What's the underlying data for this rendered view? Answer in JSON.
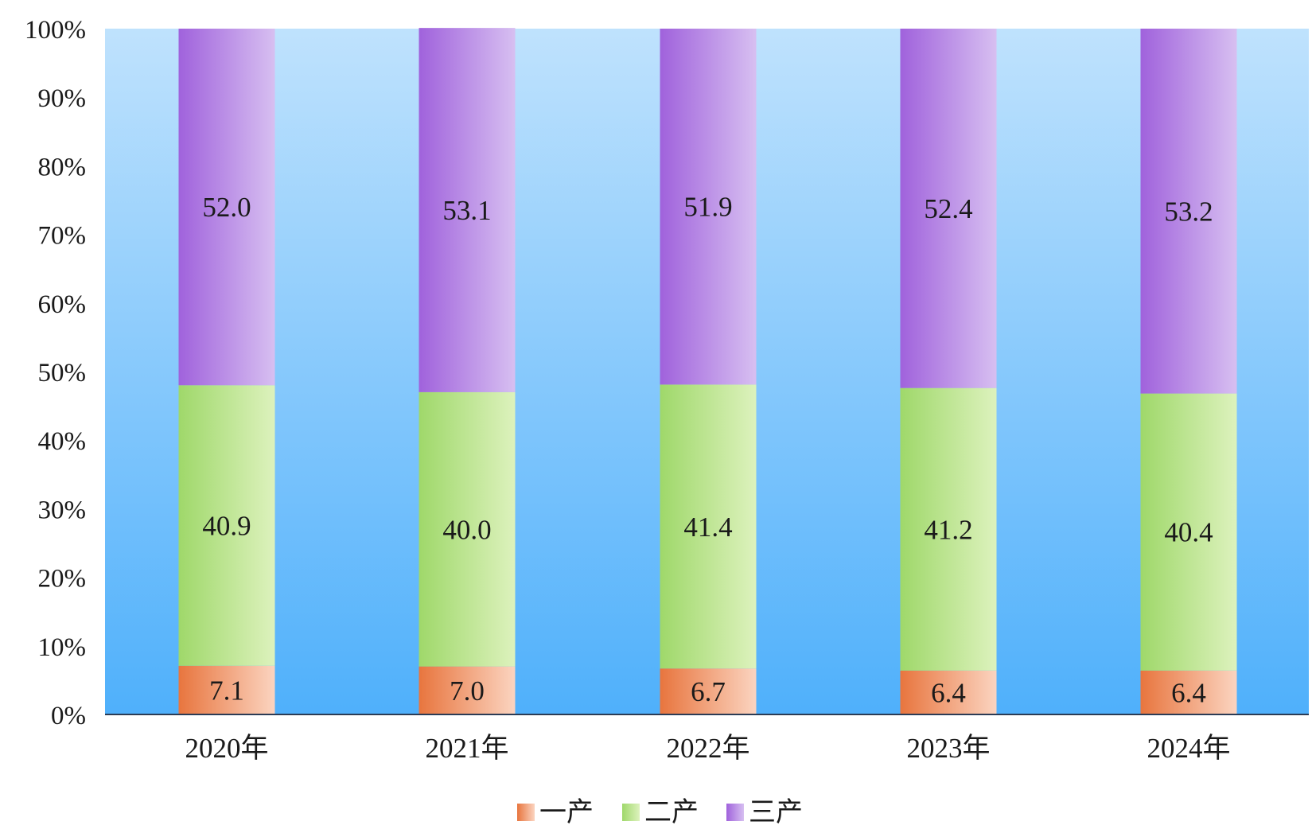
{
  "chart_data": {
    "type": "bar",
    "stacked": true,
    "categories": [
      "2020年",
      "2021年",
      "2022年",
      "2023年",
      "2024年"
    ],
    "series": [
      {
        "name": "一产",
        "values": [
          7.1,
          7.0,
          6.7,
          6.4,
          6.4
        ]
      },
      {
        "name": "二产",
        "values": [
          40.9,
          40.0,
          41.4,
          41.2,
          40.4
        ]
      },
      {
        "name": "三产",
        "values": [
          52.0,
          53.1,
          51.9,
          52.4,
          53.2
        ]
      }
    ],
    "yticks": [
      "0%",
      "10%",
      "20%",
      "30%",
      "40%",
      "50%",
      "60%",
      "70%",
      "80%",
      "90%",
      "100%"
    ],
    "ylim": [
      0,
      100
    ],
    "title": "",
    "xlabel": "",
    "ylabel": "",
    "grid": false,
    "legend_position": "bottom-center",
    "colors": {
      "一产": {
        "dark": "#e8753e",
        "light": "#fbd4c0"
      },
      "二产": {
        "dark": "#9fd86a",
        "light": "#ddf2bd"
      },
      "三产": {
        "dark": "#a062dc",
        "light": "#d7bff1"
      },
      "background_top": "#bfe2fd",
      "background_bottom": "#4fb0fb",
      "axis": "#2b3b55"
    }
  }
}
